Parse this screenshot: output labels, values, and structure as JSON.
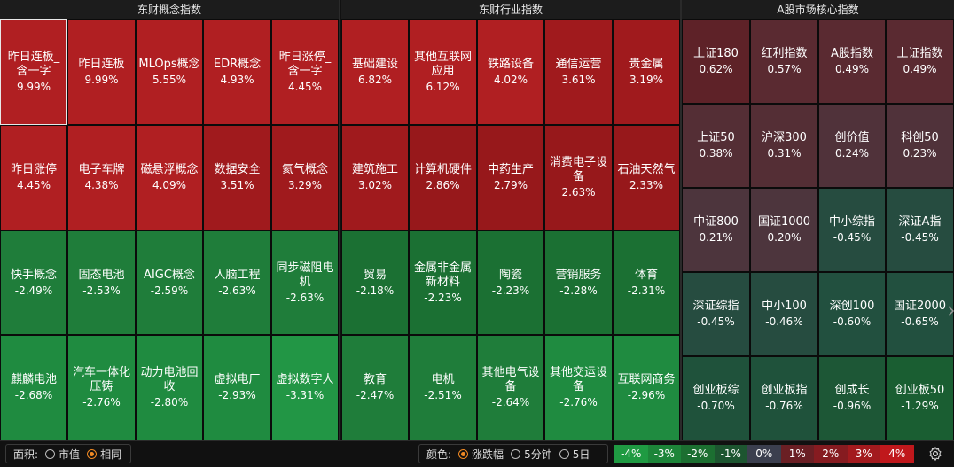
{
  "panels": [
    {
      "title": "东财概念指数",
      "tiles": [
        {
          "name": "昨日连板_含一字",
          "pct": "9.99%",
          "color": "#b01f22",
          "selected": true
        },
        {
          "name": "昨日连板",
          "pct": "9.99%",
          "color": "#b01f22"
        },
        {
          "name": "MLOps概念",
          "pct": "5.55%",
          "color": "#b01f22"
        },
        {
          "name": "EDR概念",
          "pct": "4.93%",
          "color": "#b01f22"
        },
        {
          "name": "昨日涨停_含一字",
          "pct": "4.45%",
          "color": "#b01f22"
        },
        {
          "name": "昨日涨停",
          "pct": "4.45%",
          "color": "#b01f22"
        },
        {
          "name": "电子车牌",
          "pct": "4.38%",
          "color": "#b01f22"
        },
        {
          "name": "磁悬浮概念",
          "pct": "4.09%",
          "color": "#b01f22"
        },
        {
          "name": "数据安全",
          "pct": "3.51%",
          "color": "#a01a1d"
        },
        {
          "name": "氦气概念",
          "pct": "3.29%",
          "color": "#a01a1d"
        },
        {
          "name": "快手概念",
          "pct": "-2.49%",
          "color": "#1f7d3a"
        },
        {
          "name": "固态电池",
          "pct": "-2.53%",
          "color": "#1f7d3a"
        },
        {
          "name": "AIGC概念",
          "pct": "-2.59%",
          "color": "#1f7d3a"
        },
        {
          "name": "人脑工程",
          "pct": "-2.63%",
          "color": "#1f7d3a"
        },
        {
          "name": "同步磁阻电机",
          "pct": "-2.63%",
          "color": "#1f7d3a"
        },
        {
          "name": "麒麟电池",
          "pct": "-2.68%",
          "color": "#1f8b40"
        },
        {
          "name": "汽车一体化压铸",
          "pct": "-2.76%",
          "color": "#1f8b40"
        },
        {
          "name": "动力电池回收",
          "pct": "-2.80%",
          "color": "#1f8b40"
        },
        {
          "name": "虚拟电厂",
          "pct": "-2.93%",
          "color": "#1f8b40"
        },
        {
          "name": "虚拟数字人",
          "pct": "-3.31%",
          "color": "#229645"
        }
      ]
    },
    {
      "title": "东财行业指数",
      "tiles": [
        {
          "name": "基础建设",
          "pct": "6.82%",
          "color": "#b01f22"
        },
        {
          "name": "其他互联网应用",
          "pct": "6.12%",
          "color": "#b01f22"
        },
        {
          "name": "铁路设备",
          "pct": "4.02%",
          "color": "#b01f22"
        },
        {
          "name": "通信运营",
          "pct": "3.61%",
          "color": "#a01a1d"
        },
        {
          "name": "贵金属",
          "pct": "3.19%",
          "color": "#a01a1d"
        },
        {
          "name": "建筑施工",
          "pct": "3.02%",
          "color": "#a01a1d"
        },
        {
          "name": "计算机硬件",
          "pct": "2.86%",
          "color": "#97181b"
        },
        {
          "name": "中药生产",
          "pct": "2.79%",
          "color": "#97181b"
        },
        {
          "name": "消费电子设备",
          "pct": "2.63%",
          "color": "#97181b"
        },
        {
          "name": "石油天然气",
          "pct": "2.33%",
          "color": "#97181b"
        },
        {
          "name": "贸易",
          "pct": "-2.18%",
          "color": "#1b7033"
        },
        {
          "name": "金属非金属新材料",
          "pct": "-2.23%",
          "color": "#1b7033"
        },
        {
          "name": "陶瓷",
          "pct": "-2.23%",
          "color": "#1b7033"
        },
        {
          "name": "营销服务",
          "pct": "-2.28%",
          "color": "#1b7033"
        },
        {
          "name": "体育",
          "pct": "-2.31%",
          "color": "#1b7033"
        },
        {
          "name": "教育",
          "pct": "-2.47%",
          "color": "#1f7d3a"
        },
        {
          "name": "电机",
          "pct": "-2.51%",
          "color": "#1f7d3a"
        },
        {
          "name": "其他电气设备",
          "pct": "-2.64%",
          "color": "#1f7d3a"
        },
        {
          "name": "其他交运设备",
          "pct": "-2.76%",
          "color": "#1f8b40"
        },
        {
          "name": "互联网商务",
          "pct": "-2.96%",
          "color": "#1f8b40"
        }
      ]
    },
    {
      "title": "A股市场核心指数",
      "tiles": [
        {
          "name": "上证180",
          "pct": "0.62%",
          "color": "#5e2228"
        },
        {
          "name": "红利指数",
          "pct": "0.57%",
          "color": "#5a2a31"
        },
        {
          "name": "A股指数",
          "pct": "0.49%",
          "color": "#5a2a31"
        },
        {
          "name": "上证指数",
          "pct": "0.49%",
          "color": "#5a2a31"
        },
        {
          "name": "上证50",
          "pct": "0.38%",
          "color": "#542e35"
        },
        {
          "name": "沪深300",
          "pct": "0.31%",
          "color": "#542e35"
        },
        {
          "name": "创价值",
          "pct": "0.24%",
          "color": "#50323a"
        },
        {
          "name": "科创50",
          "pct": "0.23%",
          "color": "#50323a"
        },
        {
          "name": "中证800",
          "pct": "0.21%",
          "color": "#4d353d"
        },
        {
          "name": "国证1000",
          "pct": "0.20%",
          "color": "#4d353d"
        },
        {
          "name": "中小综指",
          "pct": "-0.45%",
          "color": "#264c40"
        },
        {
          "name": "深证A指",
          "pct": "-0.45%",
          "color": "#264c40"
        },
        {
          "name": "深证综指",
          "pct": "-0.45%",
          "color": "#264c40"
        },
        {
          "name": "中小100",
          "pct": "-0.46%",
          "color": "#264c40"
        },
        {
          "name": "深创100",
          "pct": "-0.60%",
          "color": "#22503f"
        },
        {
          "name": "国证2000",
          "pct": "-0.65%",
          "color": "#22503f"
        },
        {
          "name": "创业板综",
          "pct": "-0.70%",
          "color": "#1f523b"
        },
        {
          "name": "创业板指",
          "pct": "-0.76%",
          "color": "#1f523b"
        },
        {
          "name": "创成长",
          "pct": "-0.96%",
          "color": "#1d5736"
        },
        {
          "name": "创业板50",
          "pct": "-1.29%",
          "color": "#1a5e32"
        }
      ]
    }
  ],
  "bottom": {
    "area_label": "面积:",
    "area_options": [
      {
        "label": "市值",
        "on": false
      },
      {
        "label": "相同",
        "on": true
      }
    ],
    "color_label": "颜色:",
    "color_options": [
      {
        "label": "涨跌幅",
        "on": true
      },
      {
        "label": "5分钟",
        "on": false
      },
      {
        "label": "5日",
        "on": false
      }
    ],
    "legend": [
      {
        "label": "-4%",
        "color": "#1f9a42"
      },
      {
        "label": "-3%",
        "color": "#1d8539"
      },
      {
        "label": "-2%",
        "color": "#1c6f31"
      },
      {
        "label": "-1%",
        "color": "#1d5530"
      },
      {
        "label": "0%",
        "color": "#3b3f4e"
      },
      {
        "label": "1%",
        "color": "#6a1f24"
      },
      {
        "label": "2%",
        "color": "#861b20"
      },
      {
        "label": "3%",
        "color": "#a31a1e"
      },
      {
        "label": "4%",
        "color": "#c0181c"
      }
    ],
    "settings_icon": "gear-icon"
  }
}
